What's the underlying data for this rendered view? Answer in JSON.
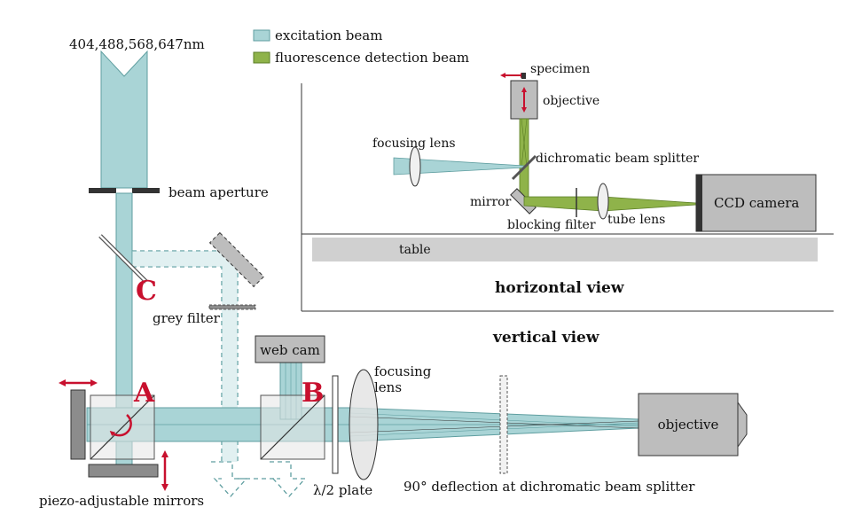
{
  "colors": {
    "excitation": "#a9d4d6",
    "excitation_stroke": "#5f9ea0",
    "fluorescence": "#8fb34a",
    "fluorescence_stroke": "#5a7d24",
    "component_grey": "#bdbdbd",
    "dark_grey": "#8c8c8c",
    "table_grey": "#d0d0d0",
    "arrow_red": "#c8102e"
  },
  "legend": {
    "excitation_label": "excitation beam",
    "fluorescence_label": "fluorescence detection beam"
  },
  "laser": {
    "wavelengths": "404,488,568,647nm"
  },
  "labels": {
    "beam_aperture": "beam aperture",
    "grey_filter": "grey filter",
    "web_cam": "web cam",
    "focusing_lens": "focusing lens",
    "focusing_lens_line1": "focusing",
    "focusing_lens_line2": "lens",
    "half_wave_plate": "λ/2 plate",
    "deflection_note": "90° deflection at dichromatic beam splitter",
    "piezo_mirrors": "piezo-adjustable mirrors",
    "objective": "objective",
    "vertical_view": "vertical view"
  },
  "markers": {
    "a": "A",
    "b": "B",
    "c": "C"
  },
  "inset": {
    "title": "horizontal view",
    "specimen": "specimen",
    "objective": "objective",
    "focusing_lens": "focusing lens",
    "dichromatic_beam_splitter": "dichromatic beam splitter",
    "mirror": "mirror",
    "blocking_filter": "blocking filter",
    "tube_lens": "tube lens",
    "ccd_camera": "CCD camera",
    "table": "table"
  }
}
